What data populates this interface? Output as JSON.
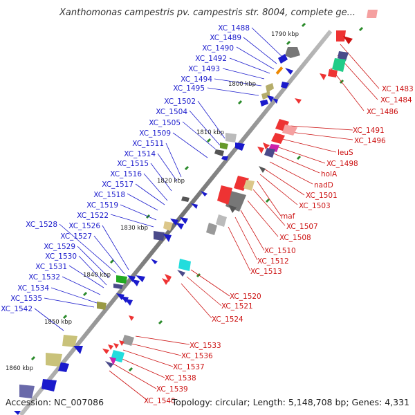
{
  "title": "Xanthomonas campestris pv. campestris str. 8004, complete ge...",
  "accession": "Accession: NC_007086",
  "topology": "Topology: circular; Length: 5,148,708 bp; Genes: 4,331",
  "kbp_marks": [
    "1790 kbp",
    "1800 kbp",
    "1810 kbp",
    "1820 kbp",
    "1830 kbp",
    "1840 kbp",
    "1850 kbp",
    "1860 kbp"
  ],
  "left_labels": [
    "XC_1488",
    "XC_1489",
    "XC_1490",
    "XC_1492",
    "XC_1493",
    "XC_1494",
    "XC_1495",
    "XC_1502",
    "XC_1504",
    "XC_1505",
    "XC_1509",
    "XC_1511",
    "XC_1514",
    "XC_1515",
    "XC_1516",
    "XC_1517",
    "XC_1518",
    "XC_1519",
    "XC_1522",
    "XC_1528",
    "XC_1526",
    "XC_1527",
    "XC_1529",
    "XC_1530",
    "XC_1531",
    "XC_1532",
    "XC_1534",
    "XC_1535",
    "XC_1542"
  ],
  "right_labels": [
    "XC_1483",
    "XC_1484",
    "XC_1486",
    "XC_1491",
    "XC_1496",
    "leuS",
    "XC_1498",
    "holA",
    "nadD",
    "XC_1501",
    "XC_1503",
    "maf",
    "XC_1507",
    "XC_1508",
    "XC_1510",
    "XC_1512",
    "XC_1513",
    "XC_1520",
    "XC_1521",
    "XC_1524",
    "XC_1533",
    "XC_1536",
    "XC_1537",
    "XC_1538",
    "XC_1539",
    "XC_1540"
  ],
  "colors": {
    "forward": "#1a1acc",
    "reverse": "#cc1111",
    "backbone": "#808080",
    "gc": "#228822"
  }
}
